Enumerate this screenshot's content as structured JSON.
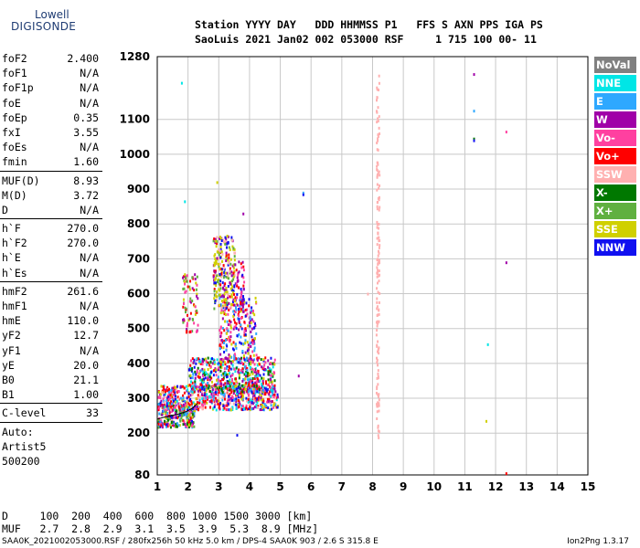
{
  "logo": {
    "top": "Lowell",
    "bottom": "DIGISONDE"
  },
  "header": {
    "line1": "Station YYYY DAY   DDD HHMMSS P1   FFS S AXN PPS IGA PS",
    "line2": "SaoLuis 2021 Jan02 002 053000 RSF     1 715 100 00- 11"
  },
  "params": [
    {
      "k": "foF2",
      "v": "2.400"
    },
    {
      "k": "foF1",
      "v": "N/A"
    },
    {
      "k": "foF1p",
      "v": "N/A"
    },
    {
      "k": "foE",
      "v": "N/A"
    },
    {
      "k": "foEp",
      "v": "0.35"
    },
    {
      "k": "fxI",
      "v": "3.55"
    },
    {
      "k": "foEs",
      "v": "N/A"
    },
    {
      "k": "fmin",
      "v": "1.60"
    },
    {
      "k": "MUF(D)",
      "v": "8.93",
      "sep": true
    },
    {
      "k": "M(D)",
      "v": "3.72"
    },
    {
      "k": "D",
      "v": "N/A"
    },
    {
      "k": "h`F",
      "v": "270.0",
      "sep": true
    },
    {
      "k": "h`F2",
      "v": "270.0"
    },
    {
      "k": "h`E",
      "v": "N/A"
    },
    {
      "k": "h`Es",
      "v": "N/A"
    },
    {
      "k": "hmF2",
      "v": "261.6",
      "sep": true
    },
    {
      "k": "hmF1",
      "v": "N/A"
    },
    {
      "k": "hmE",
      "v": "110.0"
    },
    {
      "k": "yF2",
      "v": "12.7"
    },
    {
      "k": "yF1",
      "v": "N/A"
    },
    {
      "k": "yE",
      "v": "20.0"
    },
    {
      "k": "B0",
      "v": "21.1"
    },
    {
      "k": "B1",
      "v": "1.00"
    },
    {
      "k": "C-level",
      "v": "33",
      "sep": true
    }
  ],
  "autoscale": {
    "line1": "Auto:",
    "line2": "Artist5",
    "line3": "500200"
  },
  "legend": [
    {
      "label": "NoVal",
      "color": "#808080"
    },
    {
      "label": "NNE",
      "color": "#00e6e6"
    },
    {
      "label": "E",
      "color": "#2ea8ff"
    },
    {
      "label": "W",
      "color": "#a000a8"
    },
    {
      "label": "Vo-",
      "color": "#ff40a0"
    },
    {
      "label": "Vo+",
      "color": "#ff0000"
    },
    {
      "label": "SSW",
      "color": "#ffb0b0"
    },
    {
      "label": "X-",
      "color": "#007800"
    },
    {
      "label": "X+",
      "color": "#60b040"
    },
    {
      "label": "SSE",
      "color": "#d0d000"
    },
    {
      "label": "NNW",
      "color": "#1010f0"
    }
  ],
  "footer": {
    "d_row": "D     100  200  400  600  800 1000 1500 3000 [km]",
    "muf_row": "MUF   2.7  2.8  2.9  3.1  3.5  3.9  5.3  8.9 [MHz]",
    "file_line": "SAA0K_2021002053000.RSF / 280fx256h 50 kHz 5.0 km / DPS-4 SAA0K 903 / 2.6 S 315.8 E",
    "version": "Ion2Png 1.3.17"
  },
  "chart_data": {
    "type": "scatter",
    "xlim": [
      1,
      15
    ],
    "ylim": [
      80,
      1280
    ],
    "x_ticks": [
      1,
      2,
      3,
      4,
      5,
      6,
      7,
      8,
      9,
      10,
      11,
      12,
      13,
      14,
      15
    ],
    "y_ticks": [
      80,
      200,
      300,
      400,
      500,
      600,
      700,
      800,
      900,
      1000,
      1100,
      1280
    ],
    "grid": true,
    "clusters": [
      {
        "x": [
          1.0,
          2.2
        ],
        "y": [
          220,
          290
        ],
        "count": 260,
        "colors": [
          "#a000a8",
          "#ff0000",
          "#ff40a0",
          "#60b040",
          "#007800",
          "#d0d000",
          "#1010f0",
          "#2ea8ff"
        ]
      },
      {
        "x": [
          1.0,
          4.9
        ],
        "y": [
          270,
          340
        ],
        "count": 650,
        "colors": [
          "#a000a8",
          "#ff0000",
          "#ff40a0",
          "#ff0000",
          "#1010f0",
          "#2ea8ff",
          "#00e6e6",
          "#d0d000",
          "#ffb0b0"
        ]
      },
      {
        "x": [
          2.0,
          4.8
        ],
        "y": [
          320,
          420
        ],
        "count": 520,
        "colors": [
          "#a000a8",
          "#ff0000",
          "#1010f0",
          "#2ea8ff",
          "#00e6e6",
          "#d0d000",
          "#ff40a0",
          "#007800"
        ]
      },
      {
        "x": [
          3.0,
          4.2
        ],
        "y": [
          400,
          600
        ],
        "count": 260,
        "colors": [
          "#a000a8",
          "#1010f0",
          "#ff0000",
          "#2ea8ff",
          "#d0d000",
          "#ff40a0"
        ]
      },
      {
        "x": [
          2.8,
          3.5
        ],
        "y": [
          560,
          770
        ],
        "count": 240,
        "colors": [
          "#d0d000",
          "#d0d000",
          "#a000a8",
          "#ff0000",
          "#60b040",
          "#1010f0",
          "#ffb0b0"
        ]
      },
      {
        "x": [
          1.8,
          2.3
        ],
        "y": [
          490,
          660
        ],
        "count": 80,
        "colors": [
          "#a000a8",
          "#ff0000",
          "#d0d000",
          "#60b040",
          "#ff40a0"
        ]
      },
      {
        "x": [
          3.5,
          3.8
        ],
        "y": [
          550,
          700
        ],
        "count": 50,
        "colors": [
          "#a000a8",
          "#1010f0",
          "#ff0000",
          "#ff40a0"
        ]
      },
      {
        "x": [
          8.1,
          8.2
        ],
        "y": [
          190,
          1240
        ],
        "count": 150,
        "colors": [
          "#ffb0b0"
        ]
      }
    ],
    "points": [
      {
        "x": 11.3,
        "y": 1230,
        "color": "#a000a8"
      },
      {
        "x": 11.3,
        "y": 1125,
        "color": "#2ea8ff"
      },
      {
        "x": 11.3,
        "y": 1045,
        "color": "#007800"
      },
      {
        "x": 11.3,
        "y": 1040,
        "color": "#1010f0"
      },
      {
        "x": 12.35,
        "y": 1065,
        "color": "#ff40a0"
      },
      {
        "x": 12.35,
        "y": 690,
        "color": "#a000a8"
      },
      {
        "x": 12.35,
        "y": 85,
        "color": "#ff0000"
      },
      {
        "x": 11.7,
        "y": 235,
        "color": "#d0d000"
      },
      {
        "x": 11.75,
        "y": 455,
        "color": "#00e6e6"
      },
      {
        "x": 5.75,
        "y": 890,
        "color": "#2ea8ff"
      },
      {
        "x": 5.75,
        "y": 885,
        "color": "#1010f0"
      },
      {
        "x": 1.8,
        "y": 1205,
        "color": "#00e6e6"
      },
      {
        "x": 1.9,
        "y": 865,
        "color": "#00e6e6"
      },
      {
        "x": 2.95,
        "y": 920,
        "color": "#d0d000"
      },
      {
        "x": 5.6,
        "y": 365,
        "color": "#a000a8"
      },
      {
        "x": 7.85,
        "y": 600,
        "color": "#ffb0b0"
      },
      {
        "x": 3.6,
        "y": 195,
        "color": "#1010f0"
      },
      {
        "x": 3.8,
        "y": 830,
        "color": "#a000a8"
      }
    ],
    "trace": {
      "x": [
        1.0,
        1.2,
        1.45,
        1.7,
        1.95,
        2.15,
        2.3
      ],
      "y": [
        240,
        245,
        250,
        255,
        262,
        272,
        285
      ],
      "color": "#000000"
    }
  }
}
